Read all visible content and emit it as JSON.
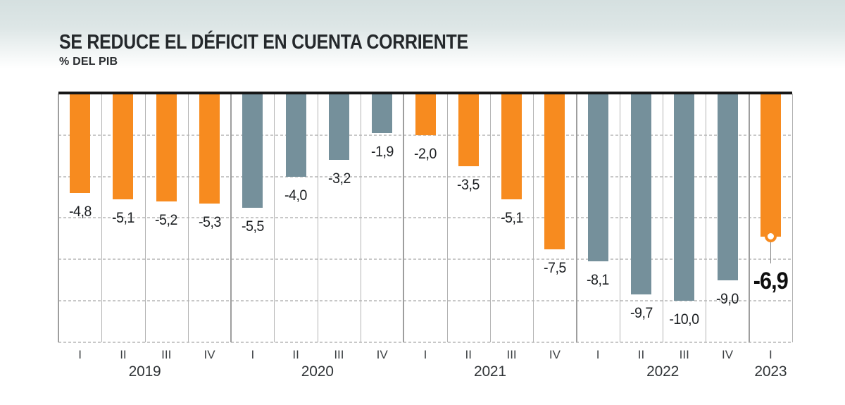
{
  "header": {
    "title": "SE REDUCE EL DÉFICIT EN CUENTA CORRIENTE",
    "subtitle": "% DEL PIB"
  },
  "chart_data": {
    "type": "bar",
    "title": "SE REDUCE EL DÉFICIT EN CUENTA CORRIENTE",
    "ylabel": "% DEL PIB",
    "ylim": [
      -12,
      0
    ],
    "gridlines": [
      -2,
      -4,
      -6,
      -8,
      -10,
      -12
    ],
    "grid": "horizontal-dashed-and-vertical-quarter-separators",
    "legend": "none",
    "colors": {
      "orange": "#F78B1F",
      "gray": "#75909B"
    },
    "years": [
      {
        "label": "2019",
        "color": "orange",
        "quarters": [
          {
            "q": "I",
            "value": -4.8,
            "value_label": "-4,8"
          },
          {
            "q": "II",
            "value": -5.1,
            "value_label": "-5,1"
          },
          {
            "q": "III",
            "value": -5.2,
            "value_label": "-5,2"
          },
          {
            "q": "IV",
            "value": -5.3,
            "value_label": "-5,3"
          }
        ]
      },
      {
        "label": "2020",
        "color": "gray",
        "quarters": [
          {
            "q": "I",
            "value": -5.5,
            "value_label": "-5,5"
          },
          {
            "q": "II",
            "value": -4.0,
            "value_label": "-4,0"
          },
          {
            "q": "III",
            "value": -3.2,
            "value_label": "-3,2"
          },
          {
            "q": "IV",
            "value": -1.9,
            "value_label": "-1,9"
          }
        ]
      },
      {
        "label": "2021",
        "color": "orange",
        "quarters": [
          {
            "q": "I",
            "value": -2.0,
            "value_label": "-2,0"
          },
          {
            "q": "II",
            "value": -3.5,
            "value_label": "-3,5"
          },
          {
            "q": "III",
            "value": -5.1,
            "value_label": "-5,1"
          },
          {
            "q": "IV",
            "value": -7.5,
            "value_label": "-7,5"
          }
        ]
      },
      {
        "label": "2022",
        "color": "gray",
        "quarters": [
          {
            "q": "I",
            "value": -8.1,
            "value_label": "-8,1"
          },
          {
            "q": "II",
            "value": -9.7,
            "value_label": "-9,7"
          },
          {
            "q": "III",
            "value": -10.0,
            "value_label": "-10,0"
          },
          {
            "q": "IV",
            "value": -9.0,
            "value_label": "-9,0"
          }
        ]
      },
      {
        "label": "2023",
        "color": "orange",
        "quarters": [
          {
            "q": "I",
            "value": -6.9,
            "value_label": "-6,9",
            "highlight": true
          }
        ]
      }
    ],
    "highlight": {
      "year": "2023",
      "quarter": "I",
      "value": -6.9,
      "value_label": "-6,9",
      "marker": "white-circle-orange-ring-with-connector-line"
    }
  }
}
